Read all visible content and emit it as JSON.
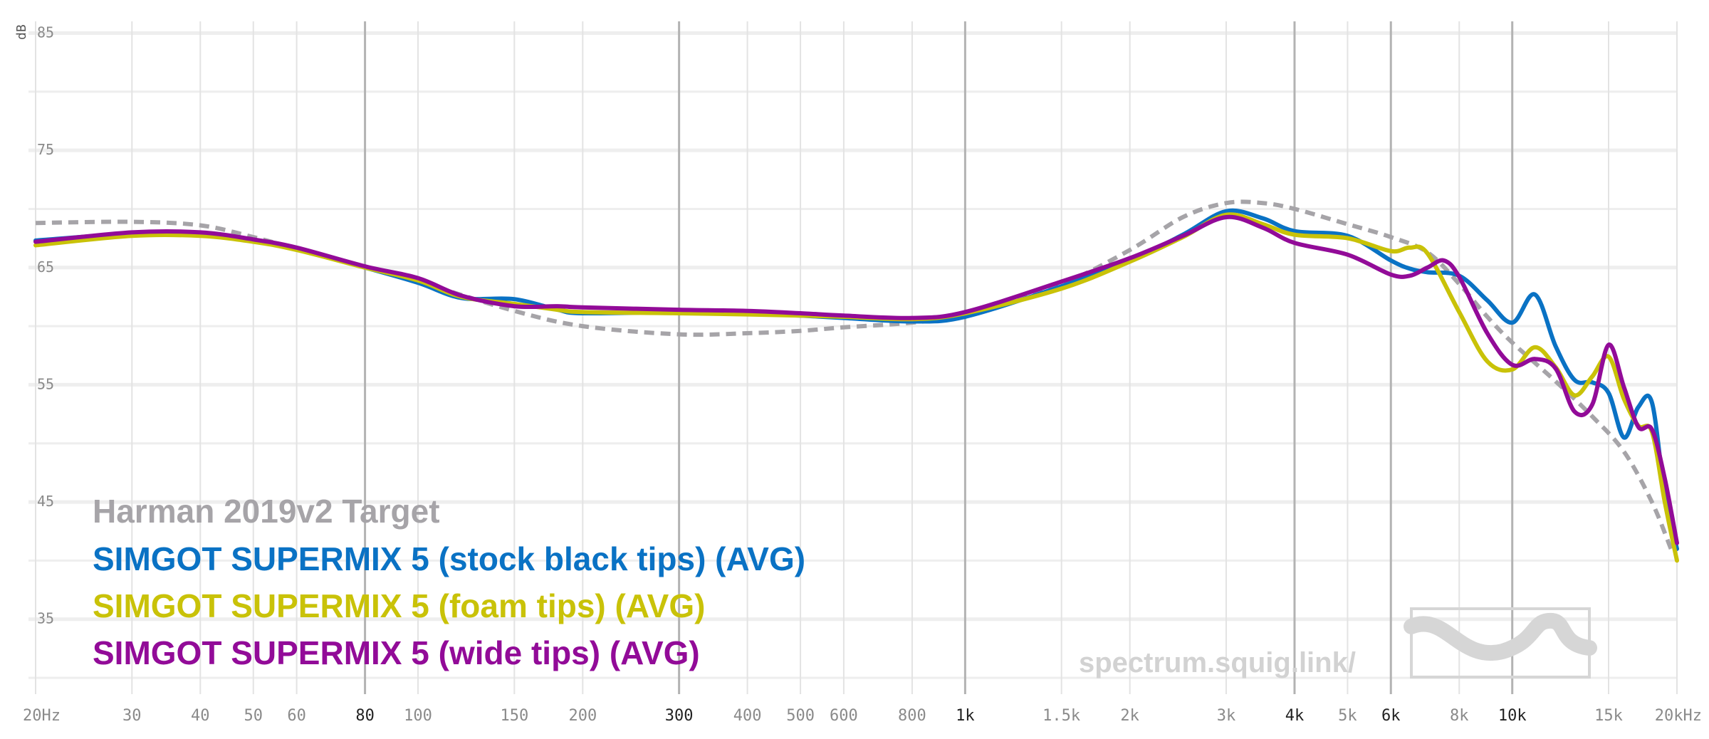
{
  "chart_data": {
    "type": "line",
    "ylabel": "dB",
    "xscale": "log",
    "xlim": [
      20,
      20000
    ],
    "ylim": [
      28,
      86
    ],
    "y_ticks": [
      {
        "value": 85,
        "label": "85"
      },
      {
        "value": 75,
        "label": "75"
      },
      {
        "value": 65,
        "label": "65"
      },
      {
        "value": 55,
        "label": "55"
      },
      {
        "value": 45,
        "label": "45"
      },
      {
        "value": 35,
        "label": "35"
      }
    ],
    "x_ticks": [
      {
        "value": 20,
        "label": "20Hz",
        "major": false
      },
      {
        "value": 30,
        "label": "30",
        "major": false
      },
      {
        "value": 40,
        "label": "40",
        "major": false
      },
      {
        "value": 50,
        "label": "50",
        "major": false
      },
      {
        "value": 60,
        "label": "60",
        "major": false
      },
      {
        "value": 80,
        "label": "80",
        "major": true
      },
      {
        "value": 100,
        "label": "100",
        "major": false
      },
      {
        "value": 150,
        "label": "150",
        "major": false
      },
      {
        "value": 200,
        "label": "200",
        "major": false
      },
      {
        "value": 300,
        "label": "300",
        "major": true
      },
      {
        "value": 400,
        "label": "400",
        "major": false
      },
      {
        "value": 500,
        "label": "500",
        "major": false
      },
      {
        "value": 600,
        "label": "600",
        "major": false
      },
      {
        "value": 800,
        "label": "800",
        "major": false
      },
      {
        "value": 1000,
        "label": "1k",
        "major": true
      },
      {
        "value": 1500,
        "label": "1.5k",
        "major": false
      },
      {
        "value": 2000,
        "label": "2k",
        "major": false
      },
      {
        "value": 3000,
        "label": "3k",
        "major": false
      },
      {
        "value": 4000,
        "label": "4k",
        "major": true
      },
      {
        "value": 5000,
        "label": "5k",
        "major": false
      },
      {
        "value": 6000,
        "label": "6k",
        "major": true
      },
      {
        "value": 8000,
        "label": "8k",
        "major": false
      },
      {
        "value": 10000,
        "label": "10k",
        "major": true
      },
      {
        "value": 15000,
        "label": "15k",
        "major": false
      },
      {
        "value": 20000,
        "label": "20kHz",
        "major": false
      }
    ],
    "series": [
      {
        "name": "Harman 2019v2 Target",
        "color": "#a6a4a8",
        "dashed": true,
        "x": [
          20,
          30,
          40,
          50,
          60,
          80,
          100,
          150,
          200,
          300,
          400,
          500,
          600,
          800,
          1000,
          1500,
          2000,
          2500,
          3000,
          3500,
          4000,
          5000,
          6000,
          7000,
          8000,
          9000,
          10000,
          12000,
          14000,
          16000,
          18000,
          19500
        ],
        "y": [
          68.8,
          68.9,
          68.6,
          67.6,
          66.6,
          65.0,
          63.8,
          61.3,
          60.0,
          59.3,
          59.4,
          59.6,
          59.9,
          60.3,
          61.0,
          63.6,
          66.5,
          69.3,
          70.5,
          70.5,
          70.0,
          68.7,
          67.6,
          66.3,
          63.6,
          60.8,
          58.6,
          55.3,
          52.3,
          49.3,
          45.0,
          41.0
        ]
      },
      {
        "name": "SIMGOT SUPERMIX 5 (stock black tips) (AVG)",
        "color": "#0a72c4",
        "dashed": false,
        "x": [
          20,
          30,
          40,
          50,
          60,
          80,
          100,
          120,
          150,
          180,
          200,
          300,
          400,
          500,
          600,
          800,
          1000,
          1500,
          2000,
          2500,
          3000,
          3500,
          4000,
          5000,
          6000,
          6500,
          7000,
          8000,
          9000,
          10000,
          11000,
          12000,
          13000,
          14000,
          15000,
          16000,
          17000,
          18000,
          19000,
          20000
        ],
        "y": [
          67.3,
          67.9,
          67.9,
          67.3,
          66.6,
          65.0,
          63.7,
          62.4,
          62.3,
          61.4,
          61.1,
          61.2,
          61.1,
          60.9,
          60.7,
          60.4,
          60.8,
          63.4,
          65.6,
          67.8,
          69.8,
          69.2,
          68.1,
          67.7,
          65.6,
          64.9,
          64.6,
          64.3,
          62.2,
          60.3,
          62.7,
          58.3,
          55.4,
          55.2,
          54.3,
          50.5,
          53.1,
          53.5,
          45.6,
          41.0
        ]
      },
      {
        "name": "SIMGOT SUPERMIX 5 (foam tips) (AVG)",
        "color": "#c9c208",
        "dashed": false,
        "x": [
          20,
          30,
          40,
          50,
          60,
          80,
          100,
          120,
          150,
          180,
          200,
          300,
          400,
          500,
          600,
          800,
          1000,
          1500,
          2000,
          2500,
          3000,
          3500,
          4000,
          5000,
          6000,
          6500,
          7000,
          8000,
          9000,
          10000,
          11000,
          12000,
          13000,
          14000,
          15000,
          16000,
          17000,
          18000,
          19000,
          20000
        ],
        "y": [
          66.9,
          67.7,
          67.7,
          67.2,
          66.5,
          65.0,
          63.9,
          62.5,
          61.9,
          61.4,
          61.2,
          61.1,
          61.0,
          60.9,
          60.8,
          60.6,
          61.1,
          63.2,
          65.5,
          67.6,
          69.5,
          68.7,
          67.8,
          67.5,
          66.4,
          66.7,
          66.2,
          61.2,
          57.0,
          56.3,
          58.2,
          56.5,
          54.1,
          55.7,
          57.4,
          53.8,
          51.5,
          51.0,
          45.0,
          40.0
        ]
      },
      {
        "name": "SIMGOT SUPERMIX 5 (wide tips) (AVG)",
        "color": "#920b98",
        "dashed": false,
        "x": [
          20,
          30,
          40,
          50,
          60,
          80,
          100,
          120,
          150,
          180,
          200,
          300,
          400,
          500,
          600,
          800,
          1000,
          1500,
          2000,
          2500,
          3000,
          3500,
          4000,
          5000,
          6000,
          6500,
          7000,
          7500,
          8000,
          9000,
          10000,
          11000,
          12000,
          13000,
          14000,
          15000,
          16000,
          17000,
          18000,
          19000,
          20000
        ],
        "y": [
          67.2,
          68.0,
          68.0,
          67.4,
          66.7,
          65.1,
          64.1,
          62.6,
          61.7,
          61.7,
          61.6,
          61.4,
          61.3,
          61.1,
          60.9,
          60.7,
          61.2,
          63.8,
          65.8,
          67.7,
          69.3,
          68.4,
          67.1,
          66.1,
          64.4,
          64.3,
          65.0,
          65.6,
          64.2,
          59.4,
          56.7,
          57.2,
          56.4,
          52.7,
          53.3,
          58.4,
          54.8,
          51.4,
          51.2,
          47.0,
          41.5
        ]
      }
    ]
  },
  "legend": {
    "target": "Harman 2019v2 Target",
    "stock": "SIMGOT SUPERMIX 5 (stock black tips) (AVG)",
    "foam": "SIMGOT SUPERMIX 5 (foam tips) (AVG)",
    "wide": "SIMGOT SUPERMIX 5 (wide tips) (AVG)"
  },
  "watermark": "spectrum.squig.link/"
}
